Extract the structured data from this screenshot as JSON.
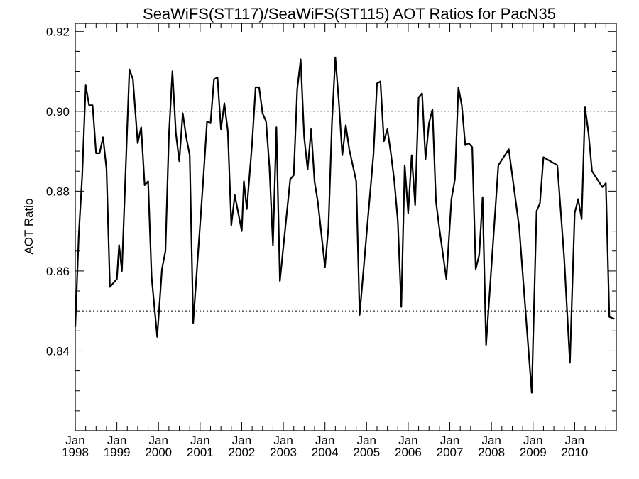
{
  "chart_data": {
    "type": "line",
    "title": "SeaWiFS(ST117)/SeaWiFS(ST115)  AOT Ratios for PacN35",
    "xlabel": "",
    "ylabel": "AOT Ratio",
    "ylim": [
      0.82,
      0.922
    ],
    "xlim": [
      "1998-01",
      "2010-12"
    ],
    "y_ticks": [
      "0.84",
      "0.86",
      "0.88",
      "0.90",
      "0.92"
    ],
    "x_ticks": [
      {
        "month": "Jan",
        "year": "1998"
      },
      {
        "month": "Jan",
        "year": "1999"
      },
      {
        "month": "Jan",
        "year": "2000"
      },
      {
        "month": "Jan",
        "year": "2001"
      },
      {
        "month": "Jan",
        "year": "2002"
      },
      {
        "month": "Jan",
        "year": "2003"
      },
      {
        "month": "Jan",
        "year": "2004"
      },
      {
        "month": "Jan",
        "year": "2005"
      },
      {
        "month": "Jan",
        "year": "2006"
      },
      {
        "month": "Jan",
        "year": "2007"
      },
      {
        "month": "Jan",
        "year": "2008"
      },
      {
        "month": "Jan",
        "year": "2009"
      },
      {
        "month": "Jan",
        "year": "2010"
      }
    ],
    "reference_lines": [
      0.85,
      0.9
    ],
    "grid": false,
    "series": [
      {
        "color": "#000000",
        "points": [
          [
            "1998-01-01",
            0.846
          ],
          [
            "1998-02-01",
            0.869
          ],
          [
            "1998-03-01",
            0.884
          ],
          [
            "1998-04-01",
            0.9065
          ],
          [
            "1998-05-01",
            0.9015
          ],
          [
            "1998-06-01",
            0.9015
          ],
          [
            "1998-07-01",
            0.8895
          ],
          [
            "1998-08-01",
            0.8895
          ],
          [
            "1998-09-01",
            0.8935
          ],
          [
            "1998-10-01",
            0.8855
          ],
          [
            "1998-11-01",
            0.856
          ],
          [
            "1999-01-01",
            0.858
          ],
          [
            "1999-01-20",
            0.8665
          ],
          [
            "1999-02-15",
            0.86
          ],
          [
            "1999-04-01",
            0.8965
          ],
          [
            "1999-04-20",
            0.9105
          ],
          [
            "1999-05-20",
            0.908
          ],
          [
            "1999-07-01",
            0.892
          ],
          [
            "1999-08-01",
            0.896
          ],
          [
            "1999-09-01",
            0.8815
          ],
          [
            "1999-10-01",
            0.8825
          ],
          [
            "1999-11-01",
            0.8585
          ],
          [
            "1999-12-20",
            0.8435
          ],
          [
            "2000-02-01",
            0.8605
          ],
          [
            "2000-03-01",
            0.865
          ],
          [
            "2000-04-01",
            0.894
          ],
          [
            "2000-05-01",
            0.91
          ],
          [
            "2000-06-01",
            0.8945
          ],
          [
            "2000-07-01",
            0.8875
          ],
          [
            "2000-08-01",
            0.8995
          ],
          [
            "2000-09-01",
            0.8935
          ],
          [
            "2000-10-01",
            0.889
          ],
          [
            "2000-11-01",
            0.847
          ],
          [
            "2001-02-01",
            0.884
          ],
          [
            "2001-03-01",
            0.8975
          ],
          [
            "2001-04-01",
            0.897
          ],
          [
            "2001-05-01",
            0.908
          ],
          [
            "2001-06-01",
            0.9085
          ],
          [
            "2001-07-01",
            0.8955
          ],
          [
            "2001-08-01",
            0.902
          ],
          [
            "2001-09-01",
            0.895
          ],
          [
            "2001-10-01",
            0.8715
          ],
          [
            "2001-11-01",
            0.879
          ],
          [
            "2002-01-01",
            0.87
          ],
          [
            "2002-01-20",
            0.8825
          ],
          [
            "2002-02-15",
            0.8755
          ],
          [
            "2002-04-01",
            0.892
          ],
          [
            "2002-05-01",
            0.906
          ],
          [
            "2002-06-01",
            0.906
          ],
          [
            "2002-07-01",
            0.8995
          ],
          [
            "2002-08-01",
            0.8975
          ],
          [
            "2002-09-01",
            0.886
          ],
          [
            "2002-10-01",
            0.8665
          ],
          [
            "2002-11-01",
            0.896
          ],
          [
            "2002-12-01",
            0.8575
          ],
          [
            "2003-03-01",
            0.883
          ],
          [
            "2003-04-01",
            0.884
          ],
          [
            "2003-05-01",
            0.9055
          ],
          [
            "2003-06-01",
            0.913
          ],
          [
            "2003-07-01",
            0.8935
          ],
          [
            "2003-08-01",
            0.8855
          ],
          [
            "2003-09-01",
            0.8955
          ],
          [
            "2003-10-01",
            0.8825
          ],
          [
            "2003-11-01",
            0.877
          ],
          [
            "2004-01-01",
            0.861
          ],
          [
            "2004-02-01",
            0.871
          ],
          [
            "2004-03-01",
            0.897
          ],
          [
            "2004-04-01",
            0.9135
          ],
          [
            "2004-05-01",
            0.9025
          ],
          [
            "2004-06-01",
            0.889
          ],
          [
            "2004-07-01",
            0.8965
          ],
          [
            "2004-08-01",
            0.8905
          ],
          [
            "2004-09-01",
            0.8865
          ],
          [
            "2004-10-01",
            0.8825
          ],
          [
            "2004-11-01",
            0.849
          ],
          [
            "2005-03-01",
            0.8895
          ],
          [
            "2005-04-01",
            0.907
          ],
          [
            "2005-05-01",
            0.9075
          ],
          [
            "2005-06-01",
            0.8925
          ],
          [
            "2005-07-01",
            0.8955
          ],
          [
            "2005-08-01",
            0.8895
          ],
          [
            "2005-09-01",
            0.8825
          ],
          [
            "2005-10-01",
            0.8725
          ],
          [
            "2005-11-01",
            0.851
          ],
          [
            "2005-12-01",
            0.8865
          ],
          [
            "2006-01-01",
            0.8745
          ],
          [
            "2006-02-01",
            0.889
          ],
          [
            "2006-03-01",
            0.8765
          ],
          [
            "2006-04-01",
            0.9035
          ],
          [
            "2006-05-01",
            0.9045
          ],
          [
            "2006-06-01",
            0.888
          ],
          [
            "2006-07-01",
            0.897
          ],
          [
            "2006-08-01",
            0.9005
          ],
          [
            "2006-09-01",
            0.8775
          ],
          [
            "2006-10-01",
            0.8705
          ],
          [
            "2006-12-01",
            0.858
          ],
          [
            "2007-01-15",
            0.878
          ],
          [
            "2007-02-15",
            0.883
          ],
          [
            "2007-03-15",
            0.906
          ],
          [
            "2007-04-15",
            0.9015
          ],
          [
            "2007-05-15",
            0.8915
          ],
          [
            "2007-06-15",
            0.892
          ],
          [
            "2007-07-15",
            0.891
          ],
          [
            "2007-08-15",
            0.8605
          ],
          [
            "2007-09-15",
            0.864
          ],
          [
            "2007-10-15",
            0.8785
          ],
          [
            "2007-11-15",
            0.8415
          ],
          [
            "2008-03-01",
            0.8865
          ],
          [
            "2008-06-01",
            0.8905
          ],
          [
            "2008-09-01",
            0.871
          ],
          [
            "2008-11-01",
            0.848
          ],
          [
            "2008-12-20",
            0.8295
          ],
          [
            "2009-02-01",
            0.875
          ],
          [
            "2009-03-01",
            0.877
          ],
          [
            "2009-04-01",
            0.8885
          ],
          [
            "2009-08-01",
            0.8865
          ],
          [
            "2009-10-01",
            0.863
          ],
          [
            "2009-11-20",
            0.837
          ],
          [
            "2010-01-01",
            0.8745
          ],
          [
            "2010-02-01",
            0.878
          ],
          [
            "2010-03-01",
            0.873
          ],
          [
            "2010-04-01",
            0.901
          ],
          [
            "2010-05-01",
            0.8945
          ],
          [
            "2010-06-01",
            0.885
          ],
          [
            "2010-09-01",
            0.881
          ],
          [
            "2010-10-01",
            0.882
          ],
          [
            "2010-11-01",
            0.8485
          ],
          [
            "2010-12-15",
            0.848
          ]
        ]
      }
    ]
  }
}
